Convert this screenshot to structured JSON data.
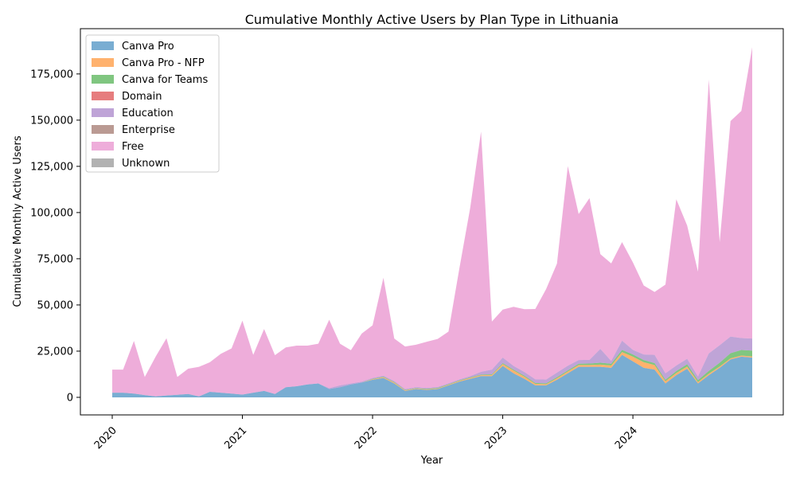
{
  "chart_data": {
    "type": "area",
    "stacked": true,
    "title": "Cumulative Monthly Active Users by Plan Type in Lithuania",
    "xlabel": "Year",
    "ylabel": "Cumulative Monthly Active Users",
    "x_start": "2020-01",
    "x": [
      "2020-01",
      "2020-02",
      "2020-03",
      "2020-04",
      "2020-05",
      "2020-06",
      "2020-07",
      "2020-08",
      "2020-09",
      "2020-10",
      "2020-11",
      "2020-12",
      "2021-01",
      "2021-02",
      "2021-03",
      "2021-04",
      "2021-05",
      "2021-06",
      "2021-07",
      "2021-08",
      "2021-09",
      "2021-10",
      "2021-11",
      "2021-12",
      "2022-01",
      "2022-02",
      "2022-03",
      "2022-04",
      "2022-05",
      "2022-06",
      "2022-07",
      "2022-08",
      "2022-09",
      "2022-10",
      "2022-11",
      "2022-12",
      "2023-01",
      "2023-02",
      "2023-03",
      "2023-04",
      "2023-05",
      "2023-06",
      "2023-07",
      "2023-08",
      "2023-09",
      "2023-10",
      "2023-11",
      "2023-12",
      "2024-01",
      "2024-02",
      "2024-03",
      "2024-04",
      "2024-05",
      "2024-06",
      "2024-07",
      "2024-08",
      "2024-09",
      "2024-10",
      "2024-11",
      "2024-12"
    ],
    "xticks": [
      "2020",
      "2021",
      "2022",
      "2023",
      "2024"
    ],
    "yticks": [
      0,
      25000,
      50000,
      75000,
      100000,
      125000,
      150000,
      175000
    ],
    "ytick_labels": [
      "0",
      "25,000",
      "50,000",
      "75,000",
      "100,000",
      "125,000",
      "150,000",
      "175,000"
    ],
    "ylim": [
      -9500,
      199500
    ],
    "grid": false,
    "legend_position": "top-left",
    "series": [
      {
        "name": "Canva Pro",
        "color": "#1f77b4",
        "values": [
          2500,
          2500,
          2000,
          1200,
          500,
          1000,
          1400,
          1800,
          500,
          3000,
          2500,
          2000,
          1500,
          2500,
          3500,
          1800,
          5500,
          6000,
          7000,
          7500,
          4500,
          5500,
          7000,
          8000,
          9500,
          10500,
          7500,
          3500,
          4500,
          4000,
          4500,
          6500,
          8500,
          10000,
          11500,
          11500,
          17000,
          13000,
          10000,
          6500,
          6500,
          9500,
          13000,
          16500,
          16500,
          16500,
          16000,
          23000,
          19500,
          16000,
          15000,
          7500,
          12000,
          15500,
          7500,
          12000,
          16000,
          20500,
          22000,
          21500
        ]
      },
      {
        "name": "Canva Pro - NFP",
        "color": "#ff7f0e",
        "values": [
          0,
          0,
          0,
          0,
          0,
          0,
          0,
          0,
          0,
          0,
          0,
          0,
          0,
          0,
          0,
          0,
          0,
          0,
          0,
          0,
          0,
          0,
          0,
          0,
          300,
          400,
          500,
          300,
          300,
          300,
          300,
          300,
          400,
          500,
          500,
          600,
          1000,
          1500,
          1200,
          800,
          600,
          800,
          1000,
          1000,
          1000,
          1200,
          1200,
          1500,
          2500,
          3000,
          2500,
          1200,
          1200,
          1200,
          800,
          800,
          700,
          600,
          600,
          600
        ]
      },
      {
        "name": "Canva for Teams",
        "color": "#2ca02c",
        "values": [
          0,
          0,
          0,
          0,
          0,
          0,
          0,
          0,
          0,
          0,
          0,
          0,
          0,
          0,
          0,
          0,
          0,
          0,
          0,
          0,
          0,
          0,
          0,
          0,
          200,
          300,
          300,
          200,
          200,
          300,
          300,
          300,
          300,
          300,
          300,
          400,
          500,
          500,
          500,
          500,
          500,
          600,
          600,
          700,
          800,
          1000,
          1000,
          1200,
          1200,
          1200,
          1000,
          800,
          1000,
          1200,
          1000,
          1500,
          2000,
          2800,
          3000,
          3200
        ]
      },
      {
        "name": "Domain",
        "color": "#d62728",
        "values": [
          0,
          0,
          0,
          0,
          0,
          0,
          0,
          0,
          0,
          0,
          0,
          0,
          0,
          0,
          0,
          0,
          0,
          0,
          0,
          0,
          0,
          0,
          0,
          0,
          0,
          0,
          0,
          0,
          0,
          0,
          0,
          0,
          0,
          0,
          0,
          0,
          0,
          0,
          0,
          0,
          0,
          0,
          0,
          0,
          0,
          0,
          0,
          0,
          0,
          0,
          0,
          0,
          0,
          0,
          0,
          0,
          0,
          0,
          0,
          0
        ]
      },
      {
        "name": "Education",
        "color": "#9467bd",
        "values": [
          0,
          0,
          0,
          0,
          0,
          0,
          0,
          0,
          0,
          0,
          0,
          0,
          0,
          0,
          0,
          0,
          0,
          0,
          0,
          0,
          500,
          1000,
          500,
          500,
          500,
          500,
          500,
          500,
          500,
          500,
          500,
          500,
          500,
          700,
          1500,
          2500,
          3000,
          2000,
          2000,
          2000,
          2000,
          2500,
          2500,
          2000,
          2000,
          7500,
          1500,
          5000,
          2500,
          3000,
          4500,
          3500,
          3000,
          3000,
          2000,
          9500,
          9500,
          9000,
          6500,
          6500
        ]
      },
      {
        "name": "Enterprise",
        "color": "#8c564b",
        "values": [
          0,
          0,
          0,
          0,
          0,
          0,
          0,
          0,
          0,
          0,
          0,
          0,
          0,
          0,
          0,
          0,
          0,
          0,
          0,
          0,
          0,
          0,
          0,
          0,
          0,
          0,
          0,
          0,
          0,
          0,
          0,
          0,
          0,
          0,
          0,
          0,
          0,
          0,
          0,
          0,
          0,
          0,
          0,
          0,
          0,
          0,
          0,
          0,
          0,
          0,
          0,
          0,
          0,
          0,
          0,
          0,
          0,
          0,
          0,
          0
        ]
      },
      {
        "name": "Free",
        "color": "#e377c2",
        "values": [
          12500,
          12500,
          28500,
          9800,
          21500,
          31000,
          9600,
          13700,
          16000,
          16000,
          21000,
          24500,
          40000,
          20500,
          33500,
          21000,
          21500,
          22000,
          21000,
          21500,
          37000,
          22500,
          18000,
          26000,
          28500,
          53000,
          23000,
          23000,
          23000,
          25000,
          26000,
          28000,
          60000,
          91000,
          130000,
          26000,
          26000,
          32000,
          34000,
          38000,
          49000,
          59000,
          108000,
          79000,
          87500,
          51300,
          52800,
          53300,
          47300,
          37300,
          34000,
          48000,
          90000,
          72100,
          56700,
          148200,
          55800,
          116600,
          122900,
          157700
        ]
      },
      {
        "name": "Unknown",
        "color": "#7f7f7f",
        "values": [
          0,
          0,
          0,
          0,
          0,
          0,
          0,
          0,
          0,
          0,
          0,
          0,
          0,
          0,
          0,
          0,
          0,
          0,
          0,
          0,
          0,
          0,
          0,
          0,
          0,
          0,
          0,
          0,
          0,
          0,
          0,
          0,
          0,
          0,
          0,
          0,
          0,
          0,
          0,
          0,
          0,
          0,
          0,
          0,
          0,
          0,
          0,
          0,
          0,
          0,
          0,
          0,
          0,
          0,
          0,
          0,
          0,
          0,
          0,
          0
        ]
      }
    ]
  }
}
